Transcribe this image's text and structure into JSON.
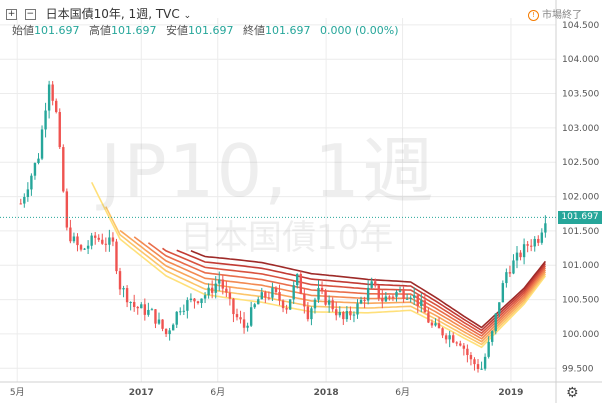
{
  "header": {
    "symbol_title": "日本国債10年, 1週, TVC",
    "collapse_icon": "collapse-box-icon",
    "expand_icon": "chevron-down-icon"
  },
  "legend": {
    "open_label": "始値",
    "open_value": "101.697",
    "high_label": "高値",
    "high_value": "101.697",
    "low_label": "安値",
    "low_value": "101.697",
    "close_label": "終値",
    "close_value": "101.697",
    "change": "0.000 (0.00%)"
  },
  "status": {
    "text": "市場終了",
    "icon": "market-closed-icon"
  },
  "watermark": {
    "main": "JP10, 1週",
    "sub": "日本国債10年"
  },
  "colors": {
    "up": "#26a69a",
    "down": "#ef5350",
    "grid": "#ececec",
    "price_line": "#26a69a",
    "axis_text": "#555555",
    "ma_colors": [
      "#ffe07a",
      "#fcc56a",
      "#f9a65c",
      "#f28a52",
      "#e96d4a",
      "#d9533f",
      "#c23b34",
      "#9e2a28"
    ]
  },
  "chart_data": {
    "type": "line",
    "chart_kind": "candlestick with moving-average ribbon",
    "title": "日本国債10年, 1週, TVC",
    "last_price": "101.697",
    "ylim": [
      99.3,
      104.6
    ],
    "y_ticks": [
      "104.500",
      "104.000",
      "103.500",
      "103.000",
      "102.500",
      "102.000",
      "101.500",
      "101.000",
      "100.500",
      "100.000",
      "99.500"
    ],
    "x_ticks": [
      "5月",
      "2017",
      "6月",
      "2018",
      "6月",
      "2019"
    ],
    "x_tick_dates": [
      "2016-05-01",
      "2017-01-01",
      "2017-06-01",
      "2018-01-01",
      "2018-06-01",
      "2019-01-01"
    ],
    "xlim": [
      "2016-03-28",
      "2019-03-31"
    ],
    "candle_anchors": [
      [
        "2016-05-08",
        101.9
      ],
      [
        "2016-06-12",
        102.6
      ],
      [
        "2016-07-03",
        103.7
      ],
      [
        "2016-07-17",
        103.2
      ],
      [
        "2016-08-07",
        101.5
      ],
      [
        "2016-09-04",
        101.2
      ],
      [
        "2016-10-02",
        101.4
      ],
      [
        "2016-11-06",
        101.3
      ],
      [
        "2016-11-20",
        100.7
      ],
      [
        "2016-12-18",
        100.4
      ],
      [
        "2017-01-22",
        100.3
      ],
      [
        "2017-02-19",
        100.0
      ],
      [
        "2017-03-19",
        100.4
      ],
      [
        "2017-04-16",
        100.5
      ],
      [
        "2017-05-14",
        100.6
      ],
      [
        "2017-06-04",
        100.8
      ],
      [
        "2017-07-02",
        100.3
      ],
      [
        "2017-07-23",
        100.1
      ],
      [
        "2017-08-20",
        100.5
      ],
      [
        "2017-09-17",
        100.6
      ],
      [
        "2017-10-15",
        100.4
      ],
      [
        "2017-11-05",
        100.8
      ],
      [
        "2017-11-26",
        100.3
      ],
      [
        "2017-12-17",
        100.6
      ],
      [
        "2018-01-14",
        100.4
      ],
      [
        "2018-02-04",
        100.2
      ],
      [
        "2018-03-04",
        100.4
      ],
      [
        "2018-04-01",
        100.7
      ],
      [
        "2018-04-22",
        100.5
      ],
      [
        "2018-05-20",
        100.6
      ],
      [
        "2018-06-17",
        100.6
      ],
      [
        "2018-07-08",
        100.4
      ],
      [
        "2018-07-29",
        100.1
      ],
      [
        "2018-08-26",
        100.0
      ],
      [
        "2018-09-23",
        99.9
      ],
      [
        "2018-10-14",
        99.6
      ],
      [
        "2018-11-04",
        99.5
      ],
      [
        "2018-11-25",
        100.0
      ],
      [
        "2018-12-09",
        100.5
      ],
      [
        "2018-12-23",
        100.9
      ],
      [
        "2019-01-13",
        101.1
      ],
      [
        "2019-02-03",
        101.3
      ],
      [
        "2019-02-24",
        101.4
      ],
      [
        "2019-03-10",
        101.7
      ]
    ],
    "ma_anchors": [
      [
        "2016-09-25",
        102.4
      ],
      [
        "2016-11-20",
        101.6
      ],
      [
        "2017-02-19",
        101.1
      ],
      [
        "2017-05-07",
        100.85
      ],
      [
        "2017-08-27",
        100.75
      ],
      [
        "2017-12-03",
        100.6
      ],
      [
        "2018-03-25",
        100.55
      ],
      [
        "2018-06-17",
        100.55
      ],
      [
        "2018-08-05",
        100.35
      ],
      [
        "2018-09-30",
        100.1
      ],
      [
        "2018-11-04",
        99.95
      ],
      [
        "2018-12-16",
        100.25
      ],
      [
        "2019-01-27",
        100.55
      ],
      [
        "2019-03-10",
        100.95
      ]
    ],
    "ma_count": 8
  }
}
